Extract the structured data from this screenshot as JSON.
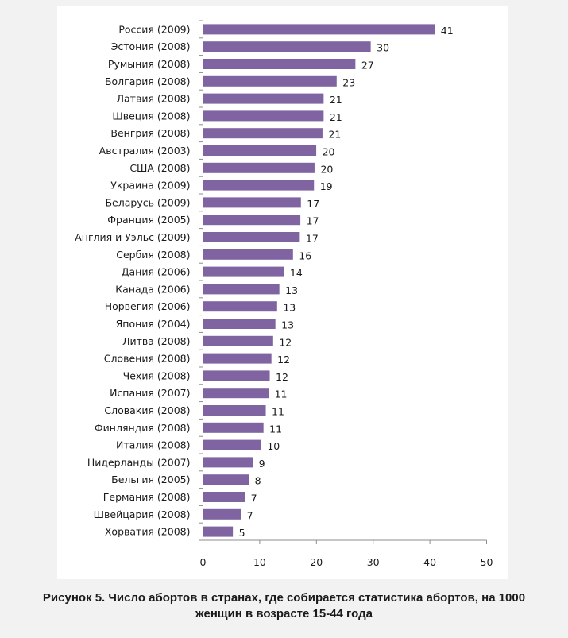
{
  "chart_data": {
    "type": "bar",
    "orientation": "horizontal",
    "title": "",
    "xlabel": "",
    "ylabel": "",
    "xlim": [
      0,
      50
    ],
    "xticks": [
      0,
      10,
      20,
      30,
      40,
      50
    ],
    "grid": false,
    "legend": "none",
    "bar_color": "#8064a2",
    "categories": [
      "Россия (2009)",
      "Эстония (2008)",
      "Румыния (2008)",
      "Болгария (2008)",
      "Латвия (2008)",
      "Швеция (2008)",
      "Венгрия (2008)",
      "Австралия (2003)",
      "США (2008)",
      "Украина (2009)",
      "Беларусь (2009)",
      "Франция (2005)",
      "Англия и Уэльс (2009)",
      "Сербия (2008)",
      "Дания (2006)",
      "Канада (2006)",
      "Норвегия (2006)",
      "Япония (2004)",
      "Литва (2008)",
      "Словения (2008)",
      "Чехия (2008)",
      "Испания (2007)",
      "Словакия (2008)",
      "Финляндия (2008)",
      "Италия (2008)",
      "Нидерланды (2007)",
      "Бельгия (2005)",
      "Германия (2008)",
      "Швейцария (2008)",
      "Хорватия (2008)"
    ],
    "values": [
      41,
      30,
      27,
      23,
      21,
      21,
      21,
      20,
      20,
      19,
      17,
      17,
      17,
      16,
      14,
      13,
      13,
      13,
      12,
      12,
      12,
      11,
      11,
      11,
      10,
      9,
      8,
      7,
      7,
      5
    ],
    "bar_lengths_approx": [
      40.8,
      29.5,
      26.8,
      23.5,
      21.2,
      21.2,
      21.0,
      19.9,
      19.6,
      19.5,
      17.2,
      17.1,
      17.0,
      15.8,
      14.2,
      13.4,
      13.0,
      12.7,
      12.3,
      12.0,
      11.7,
      11.5,
      11.0,
      10.6,
      10.2,
      8.7,
      8.0,
      7.3,
      6.6,
      5.2
    ]
  },
  "caption": {
    "line1": "Рисунок 5. Число абортов в странах, где собирается статистика абортов, на 1000",
    "line2": "женщин в возрасте 15-44 года"
  }
}
